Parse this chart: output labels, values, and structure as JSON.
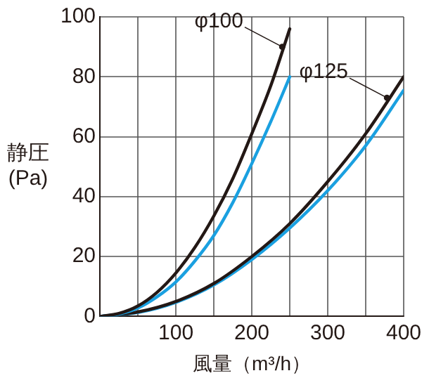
{
  "chart_data": {
    "type": "line",
    "xlabel": "風量（m³/h）",
    "ylabel": "静圧\n(Pa)",
    "xlim": [
      0,
      400
    ],
    "xticks": [
      {
        "value": 0,
        "label": null
      },
      {
        "value": 50,
        "label": null
      },
      100,
      {
        "value": 150,
        "label": null
      },
      200,
      {
        "value": 250,
        "label": null
      },
      300,
      {
        "value": 350,
        "label": null
      },
      400
    ],
    "ylim": [
      0,
      100
    ],
    "yticks": [
      0,
      20,
      40,
      60,
      80,
      100
    ],
    "grid": true,
    "legend": false,
    "marker": "none",
    "line_style": "solid",
    "series": [
      {
        "color": "#231815",
        "x": [
          0,
          25,
          50,
          75,
          100,
          125,
          150,
          175,
          200,
          225,
          250
        ],
        "values": [
          0,
          1,
          3.5,
          8,
          14.5,
          23,
          33.5,
          46,
          61,
          77,
          96
        ]
      },
      {
        "color": "#1aa0e0",
        "x": [
          0,
          25,
          50,
          75,
          100,
          125,
          150,
          175,
          200,
          225,
          250
        ],
        "values": [
          0,
          0.8,
          2.8,
          6.5,
          11.5,
          18.5,
          27,
          38,
          51,
          65,
          80
        ]
      },
      {
        "color": "#231815",
        "x": [
          0,
          50,
          100,
          150,
          200,
          250,
          300,
          350,
          400
        ],
        "values": [
          0,
          1.5,
          5,
          11,
          20,
          31,
          45,
          61,
          80
        ]
      },
      {
        "color": "#1aa0e0",
        "x": [
          0,
          50,
          100,
          150,
          200,
          250,
          300,
          350,
          400
        ],
        "values": [
          0,
          1.3,
          4.7,
          10.5,
          19,
          29.5,
          42,
          57,
          75.5
        ]
      }
    ],
    "annotations": [
      {
        "text": "φ100",
        "x": 240,
        "y": 90
      },
      {
        "text": "φ125",
        "x": 378,
        "y": 73
      }
    ]
  }
}
